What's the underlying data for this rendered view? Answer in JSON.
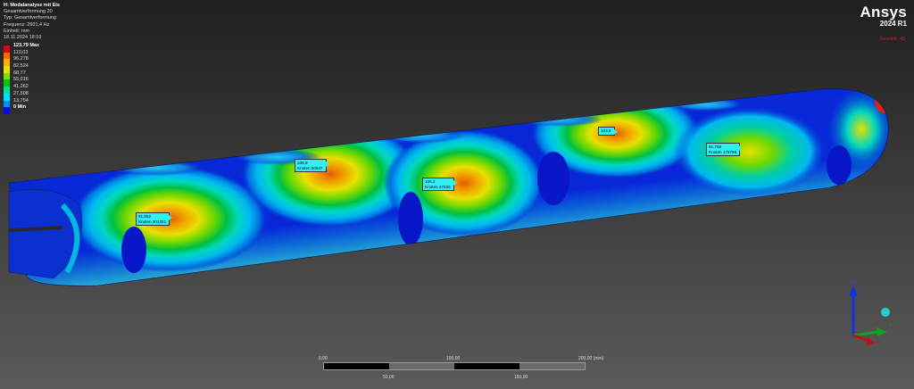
{
  "info": {
    "title": "H: Modalanalyse mit Eis",
    "result": "Gesamtverformung 20",
    "type": "Typ: Gesamtverformung",
    "frequency": "Frequenz: 2601,4 Hz",
    "unit": "Einheit: mm",
    "date": "18.11.2024 18:10"
  },
  "legend": {
    "entries": [
      {
        "label": "123,79 Max",
        "color": "#e0001a"
      },
      {
        "label": "110,03",
        "color": "#ff6a00"
      },
      {
        "label": "96,278",
        "color": "#ffb000"
      },
      {
        "label": "82,524",
        "color": "#e8e000"
      },
      {
        "label": "68,77",
        "color": "#80e000"
      },
      {
        "label": "55,016",
        "color": "#00c800"
      },
      {
        "label": "41,262",
        "color": "#00e0a0"
      },
      {
        "label": "27,508",
        "color": "#00e0ff"
      },
      {
        "label": "13,754",
        "color": "#0090ff"
      },
      {
        "label": "0 Min",
        "color": "#0010e0"
      }
    ]
  },
  "brand": {
    "name": "Ansys",
    "version": "2024 R1"
  },
  "selection": "Gewählt : 43",
  "probes": [
    {
      "value": "91,552",
      "node": "Knoten 201321"
    },
    {
      "value": "105,9",
      "node": "Knoten 50547"
    },
    {
      "value": "105,2",
      "node": "Knoten 47530"
    },
    {
      "value": "103,8",
      "node": ""
    },
    {
      "value": "91,758",
      "node": "Knoten 175795"
    }
  ],
  "scale": {
    "t0": "0,00",
    "t100": "100,00",
    "t200": "200,00 (mm)",
    "t50": "50,00",
    "t150": "150,00"
  },
  "triad": {
    "x": "X",
    "y": "Y",
    "z": "Z"
  }
}
